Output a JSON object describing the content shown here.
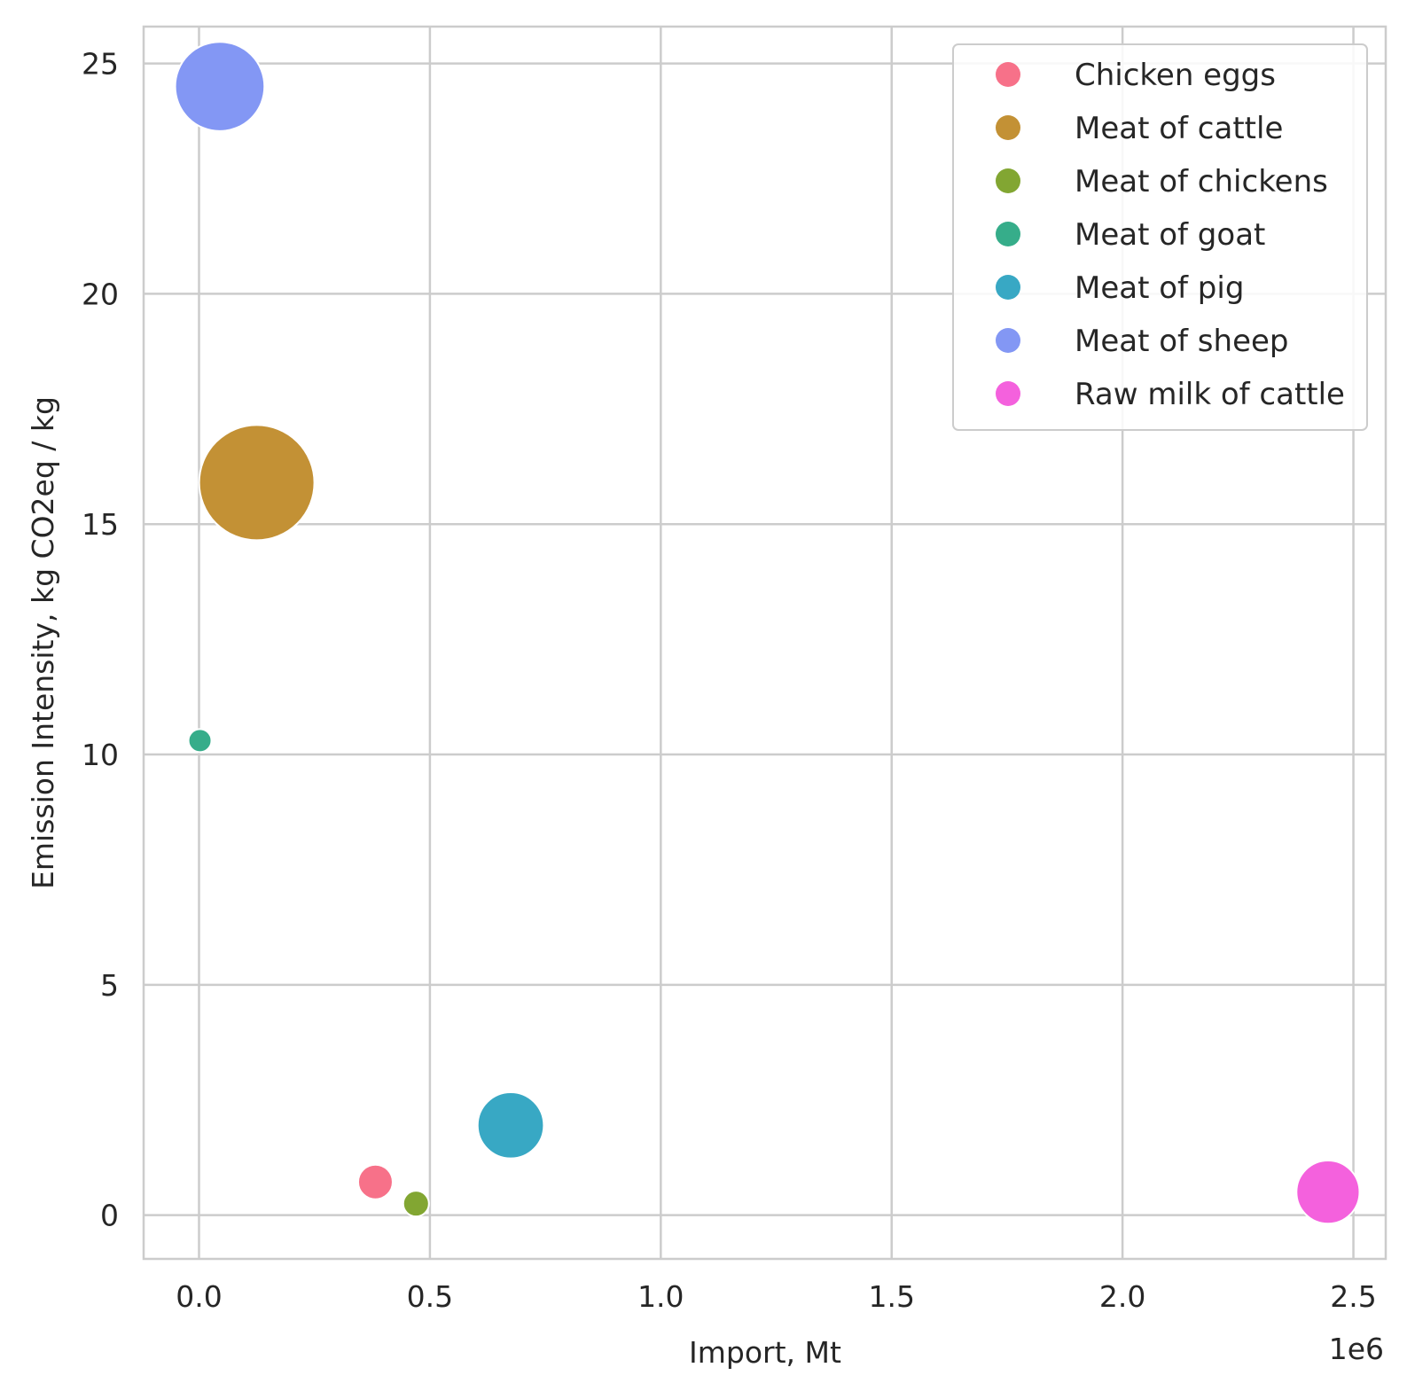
{
  "chart_data": {
    "type": "scatter",
    "title": "",
    "xlabel": "Import, Mt",
    "ylabel": "Emission Intensity, kg CO2eq / kg",
    "x_offset_label": "1e6",
    "xlim": [
      -120000,
      2570000
    ],
    "ylim": [
      -0.95,
      25.8
    ],
    "x_ticks": [
      0,
      500000,
      1000000,
      1500000,
      2000000,
      2500000
    ],
    "x_tick_labels": [
      "0.0",
      "0.5",
      "1.0",
      "1.5",
      "2.0",
      "2.5"
    ],
    "y_ticks": [
      0,
      5,
      10,
      15,
      20,
      25
    ],
    "y_tick_labels": [
      "0",
      "5",
      "10",
      "15",
      "20",
      "25"
    ],
    "grid": true,
    "legend_position": "top-right",
    "series": [
      {
        "name": "Chicken eggs",
        "color": "#f77189",
        "x": 382000,
        "y": 0.72,
        "size": 0.09
      },
      {
        "name": "Meat of cattle",
        "color": "#c39135",
        "x": 125000,
        "y": 15.9,
        "size": 1.0
      },
      {
        "name": "Meat of chickens",
        "color": "#82a632",
        "x": 470000,
        "y": 0.25,
        "size": 0.05
      },
      {
        "name": "Meat of goat",
        "color": "#36ad8a",
        "x": 2000,
        "y": 10.3,
        "size": 0.04
      },
      {
        "name": "Meat of pig",
        "color": "#38a8c4",
        "x": 675000,
        "y": 1.95,
        "size": 0.33
      },
      {
        "name": "Meat of sheep",
        "color": "#8397f4",
        "x": 45000,
        "y": 24.5,
        "size": 0.6
      },
      {
        "name": "Raw milk of cattle",
        "color": "#f461dd",
        "x": 2445000,
        "y": 0.5,
        "size": 0.3
      }
    ]
  }
}
